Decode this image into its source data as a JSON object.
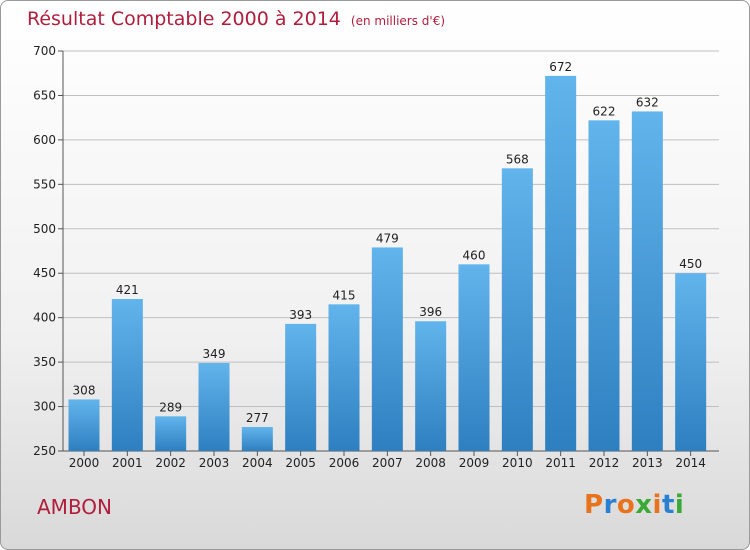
{
  "header": {
    "title": "Résultat Comptable 2000 à 2014",
    "unit": "(en milliers d'€)"
  },
  "footer": {
    "place": "AMBON",
    "logo": "Proxiti"
  },
  "colors": {
    "title": "#b01e3c",
    "bar_top": "#62b4ec",
    "bar_bottom": "#2e7fc0",
    "grid": "#bfbfbf"
  },
  "chart_data": {
    "type": "bar",
    "categories": [
      "2000",
      "2001",
      "2002",
      "2003",
      "2004",
      "2005",
      "2006",
      "2007",
      "2008",
      "2009",
      "2010",
      "2011",
      "2012",
      "2013",
      "2014"
    ],
    "values": [
      308,
      421,
      289,
      349,
      277,
      393,
      415,
      479,
      396,
      460,
      568,
      672,
      622,
      632,
      450
    ],
    "ylim": [
      250,
      700
    ],
    "yticks": [
      250,
      300,
      350,
      400,
      450,
      500,
      550,
      600,
      650,
      700
    ],
    "grid": true,
    "data_labels": true,
    "title": "Résultat Comptable 2000 à 2014",
    "xlabel": "",
    "ylabel": ""
  }
}
